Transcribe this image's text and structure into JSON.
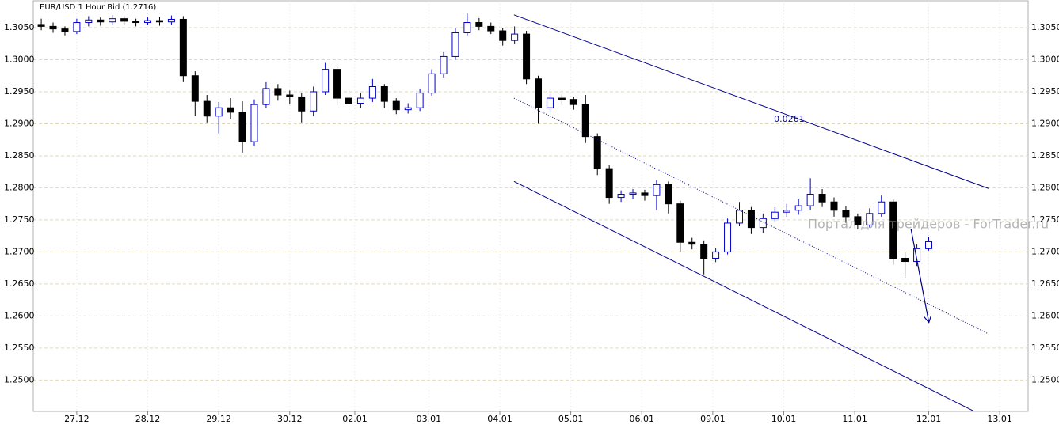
{
  "chart_data": {
    "type": "candlestick",
    "title": "EUR/USD 1 Hour Bid (1.2716)",
    "x": [
      -12,
      -8,
      -4,
      0,
      4,
      8,
      12,
      16,
      20,
      24,
      28,
      32,
      36,
      40,
      44,
      48,
      52,
      56,
      60,
      64,
      68,
      72,
      76,
      80,
      84,
      88,
      92,
      96,
      100,
      104,
      108,
      112,
      116,
      120,
      124,
      128,
      132,
      136,
      140,
      144,
      148,
      152,
      156,
      160,
      164,
      168,
      172,
      176,
      180,
      184,
      188,
      192,
      196,
      200,
      204,
      208,
      212,
      216,
      220,
      224,
      228,
      232,
      236,
      240,
      244,
      248,
      252,
      256,
      260,
      264,
      268,
      272,
      276,
      280,
      284,
      288
    ],
    "open": [
      1.3055,
      1.3052,
      1.3048,
      1.3044,
      1.3058,
      1.3062,
      1.3059,
      1.3064,
      1.306,
      1.3058,
      1.3061,
      1.3059,
      1.3063,
      1.2975,
      1.2935,
      1.2912,
      1.2925,
      1.2918,
      1.2872,
      1.293,
      1.2955,
      1.2945,
      1.2942,
      1.292,
      1.295,
      1.2985,
      1.294,
      1.2932,
      1.294,
      1.2958,
      1.2935,
      1.2922,
      1.2925,
      1.2948,
      1.2978,
      1.3005,
      1.3042,
      1.3058,
      1.3052,
      1.3045,
      1.303,
      1.304,
      1.297,
      1.2925,
      1.294,
      1.2938,
      1.293,
      1.288,
      1.283,
      1.2785,
      1.279,
      1.2792,
      1.2788,
      1.2805,
      1.2775,
      1.2715,
      1.2712,
      1.269,
      1.27,
      1.2745,
      1.2765,
      1.2738,
      1.2752,
      1.2762,
      1.2765,
      1.2772,
      1.279,
      1.2778,
      1.2765,
      1.2755,
      1.2742,
      1.276,
      1.2778,
      1.269,
      1.2685,
      1.2705
    ],
    "high": [
      1.3064,
      1.3058,
      1.3052,
      1.3064,
      1.3068,
      1.3066,
      1.307,
      1.3068,
      1.3064,
      1.3066,
      1.3067,
      1.3069,
      1.3068,
      1.2982,
      1.2945,
      1.2934,
      1.294,
      1.2935,
      1.2938,
      1.2965,
      1.2962,
      1.2952,
      1.2948,
      1.2958,
      1.2995,
      1.299,
      1.2948,
      1.2948,
      1.297,
      1.2962,
      1.294,
      1.2932,
      1.2955,
      1.2985,
      1.3012,
      1.305,
      1.3072,
      1.3065,
      1.3058,
      1.305,
      1.3052,
      1.3045,
      1.2975,
      1.2948,
      1.2946,
      1.2942,
      1.2945,
      1.2885,
      1.2835,
      1.2796,
      1.2798,
      1.2797,
      1.2812,
      1.281,
      1.278,
      1.2722,
      1.2718,
      1.2706,
      1.2752,
      1.2778,
      1.277,
      1.276,
      1.277,
      1.2775,
      1.2782,
      1.2815,
      1.2798,
      1.2785,
      1.2772,
      1.276,
      1.2768,
      1.2788,
      1.2782,
      1.27,
      1.2712,
      1.2724
    ],
    "low": [
      1.3046,
      1.3042,
      1.3038,
      1.304,
      1.3052,
      1.3053,
      1.3054,
      1.3055,
      1.3052,
      1.3054,
      1.3053,
      1.3055,
      1.2965,
      1.2912,
      1.2902,
      1.2885,
      1.2908,
      1.2855,
      1.2865,
      1.2925,
      1.2936,
      1.293,
      1.2902,
      1.2912,
      1.2945,
      1.293,
      1.2922,
      1.2925,
      1.2934,
      1.2925,
      1.2915,
      1.2916,
      1.292,
      1.2944,
      1.2972,
      1.3,
      1.3038,
      1.3046,
      1.304,
      1.3022,
      1.3024,
      1.2962,
      1.29,
      1.2918,
      1.293,
      1.2922,
      1.287,
      1.282,
      1.2775,
      1.2778,
      1.2783,
      1.278,
      1.2765,
      1.276,
      1.27,
      1.2704,
      1.2665,
      1.2684,
      1.2696,
      1.274,
      1.2728,
      1.273,
      1.2748,
      1.2755,
      1.2758,
      1.2765,
      1.277,
      1.2755,
      1.2745,
      1.2735,
      1.2738,
      1.2755,
      1.268,
      1.266,
      1.2678,
      1.2702
    ],
    "close": [
      1.3052,
      1.3048,
      1.3044,
      1.3058,
      1.3062,
      1.3059,
      1.3064,
      1.306,
      1.3058,
      1.3061,
      1.3059,
      1.3063,
      1.2975,
      1.2935,
      1.2912,
      1.2925,
      1.2918,
      1.2872,
      1.293,
      1.2955,
      1.2945,
      1.2942,
      1.292,
      1.295,
      1.2985,
      1.294,
      1.2932,
      1.294,
      1.2958,
      1.2935,
      1.2922,
      1.2925,
      1.2948,
      1.2978,
      1.3005,
      1.3042,
      1.3058,
      1.3052,
      1.3045,
      1.303,
      1.304,
      1.297,
      1.2925,
      1.294,
      1.2938,
      1.293,
      1.288,
      1.283,
      1.2785,
      1.279,
      1.2792,
      1.2788,
      1.2805,
      1.2775,
      1.2715,
      1.2712,
      1.269,
      1.27,
      1.2745,
      1.2765,
      1.2738,
      1.2752,
      1.2762,
      1.2765,
      1.2772,
      1.279,
      1.2778,
      1.2765,
      1.2755,
      1.2742,
      1.276,
      1.2778,
      1.269,
      1.2685,
      1.2705,
      1.2716
    ],
    "up_color": "#0000cc",
    "down_color": "#000000",
    "xlim": [
      -14.7,
      321.6
    ],
    "xticks": [
      {
        "value": 0,
        "label": "27.12"
      },
      {
        "value": 24,
        "label": "28.12"
      },
      {
        "value": 48,
        "label": "29.12"
      },
      {
        "value": 72,
        "label": "30.12"
      },
      {
        "value": 94,
        "label": "02.01"
      },
      {
        "value": 119,
        "label": "03.01"
      },
      {
        "value": 143,
        "label": "04.01"
      },
      {
        "value": 167,
        "label": "05.01"
      },
      {
        "value": 191,
        "label": "06.01"
      },
      {
        "value": 215,
        "label": "09.01"
      },
      {
        "value": 239,
        "label": "10.01"
      },
      {
        "value": 263,
        "label": "11.01"
      },
      {
        "value": 288,
        "label": "12.01"
      },
      {
        "value": 312,
        "label": "13.01"
      }
    ],
    "ylim": [
      1.2451,
      1.3092
    ],
    "yticks": [
      {
        "value": 1.305,
        "label": "1.3050"
      },
      {
        "value": 1.3,
        "label": "1.3000"
      },
      {
        "value": 1.295,
        "label": "1.2950"
      },
      {
        "value": 1.29,
        "label": "1.2900"
      },
      {
        "value": 1.285,
        "label": "1.2850"
      },
      {
        "value": 1.28,
        "label": "1.2800"
      },
      {
        "value": 1.275,
        "label": "1.2750"
      },
      {
        "value": 1.27,
        "label": "1.2700"
      },
      {
        "value": 1.265,
        "label": "1.2650"
      },
      {
        "value": 1.26,
        "label": "1.2600"
      },
      {
        "value": 1.255,
        "label": "1.2550"
      },
      {
        "value": 1.25,
        "label": "1.2500"
      }
    ],
    "grid": true,
    "channel": {
      "x": [
        147.8,
        308.2
      ],
      "upper": [
        1.307,
        1.2799
      ],
      "middle": [
        1.294,
        1.2572
      ],
      "lower": [
        1.281,
        1.244
      ],
      "color": "#00008b"
    },
    "channel_label": "0.0261",
    "arrow": {
      "x": [
        282,
        288
      ],
      "y": [
        1.2736,
        1.2591
      ],
      "color": "#00008b"
    },
    "watermark": "Портал для трейдеров - ForTrader.ru"
  }
}
